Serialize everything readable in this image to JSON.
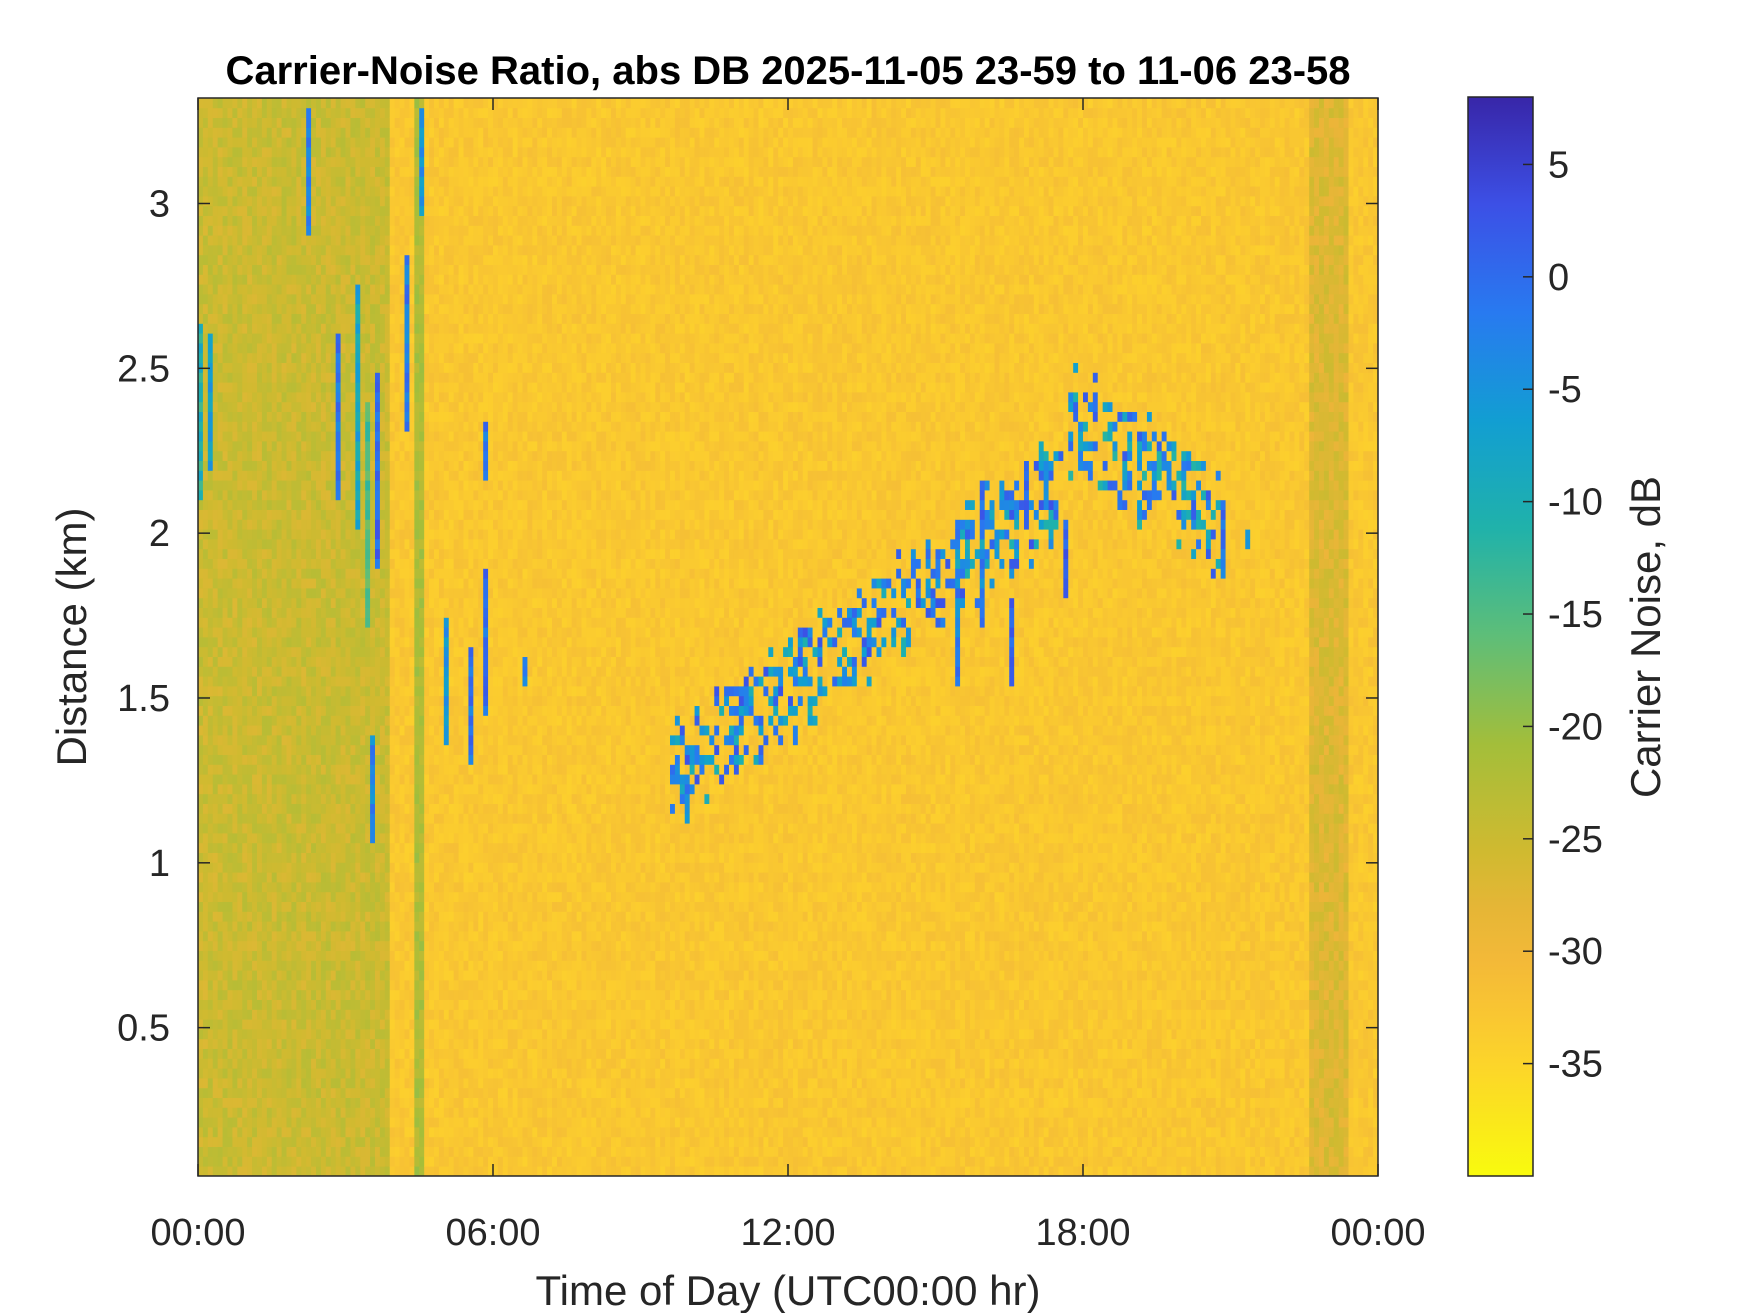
{
  "chart_data": {
    "type": "heatmap",
    "title": "Carrier-Noise Ratio, abs DB 2025-11-05 23-59 to 11-06 23-58",
    "xlabel": "Time of Day (UTC00:00 hr)",
    "ylabel": "Distance (km)",
    "colorbar_label": "Carrier Noise, dB",
    "xlim_hours": [
      0,
      24
    ],
    "ylim_km": [
      0.05,
      3.32
    ],
    "clim_db": [
      -40,
      8
    ],
    "x_ticks": [
      {
        "value": 0,
        "label": "00:00"
      },
      {
        "value": 6,
        "label": "06:00"
      },
      {
        "value": 12,
        "label": "12:00"
      },
      {
        "value": 18,
        "label": "18:00"
      },
      {
        "value": 24,
        "label": "00:00"
      }
    ],
    "y_ticks": [
      {
        "value": 0.5,
        "label": "0.5"
      },
      {
        "value": 1,
        "label": "1"
      },
      {
        "value": 1.5,
        "label": "1.5"
      },
      {
        "value": 2,
        "label": "2"
      },
      {
        "value": 2.5,
        "label": "2.5"
      },
      {
        "value": 3,
        "label": "3"
      }
    ],
    "colorbar_ticks": [
      {
        "value": 5,
        "label": "5"
      },
      {
        "value": 0,
        "label": "0"
      },
      {
        "value": -5,
        "label": "-5"
      },
      {
        "value": -10,
        "label": "-10"
      },
      {
        "value": -15,
        "label": "-15"
      },
      {
        "value": -20,
        "label": "-20"
      },
      {
        "value": -25,
        "label": "-25"
      },
      {
        "value": -30,
        "label": "-30"
      },
      {
        "value": -35,
        "label": "-35"
      }
    ],
    "colormap": "parula_reversed",
    "background_level_db": -33,
    "features": [
      {
        "kind": "column",
        "t_start": 0.0,
        "t_end": 3.9,
        "d_start": 0.05,
        "d_end": 3.32,
        "db": -25
      },
      {
        "kind": "column",
        "t_start": 4.45,
        "t_end": 4.58,
        "d_start": 0.05,
        "d_end": 3.32,
        "db": -22
      },
      {
        "kind": "column",
        "t_start": 22.6,
        "t_end": 23.4,
        "d_start": 0.05,
        "d_end": 3.32,
        "db": -27
      },
      {
        "kind": "streak",
        "t": 0.05,
        "d_start": 2.1,
        "d_end": 2.65,
        "db": -8
      },
      {
        "kind": "streak",
        "t": 0.3,
        "d_start": 2.2,
        "d_end": 2.6,
        "db": -3
      },
      {
        "kind": "streak",
        "t": 2.2,
        "d_start": 2.9,
        "d_end": 3.3,
        "db": 0
      },
      {
        "kind": "streak",
        "t": 2.9,
        "d_start": 2.1,
        "d_end": 2.6,
        "db": 2
      },
      {
        "kind": "streak",
        "t": 3.25,
        "d_start": 2.0,
        "d_end": 2.75,
        "db": -5
      },
      {
        "kind": "streak",
        "t": 3.45,
        "d_start": 1.7,
        "d_end": 2.4,
        "db": -12
      },
      {
        "kind": "streak",
        "t": 3.65,
        "d_start": 1.9,
        "d_end": 2.5,
        "db": 3
      },
      {
        "kind": "streak",
        "t": 4.25,
        "d_start": 2.3,
        "d_end": 2.85,
        "db": 1
      },
      {
        "kind": "streak",
        "t": 3.5,
        "d_start": 1.05,
        "d_end": 1.4,
        "db": 0
      },
      {
        "kind": "streak",
        "t": 4.5,
        "d_start": 2.95,
        "d_end": 3.3,
        "db": -2
      },
      {
        "kind": "streak",
        "t": 5.05,
        "d_start": 1.35,
        "d_end": 1.75,
        "db": -2
      },
      {
        "kind": "streak",
        "t": 5.55,
        "d_start": 1.3,
        "d_end": 1.65,
        "db": 2
      },
      {
        "kind": "streak",
        "t": 5.85,
        "d_start": 1.45,
        "d_end": 1.9,
        "db": 3
      },
      {
        "kind": "streak",
        "t": 5.85,
        "d_start": 2.15,
        "d_end": 2.35,
        "db": 2
      },
      {
        "kind": "streak",
        "t": 6.65,
        "d_start": 1.55,
        "d_end": 1.62,
        "db": 0
      },
      {
        "kind": "streak",
        "t": 15.45,
        "d_start": 1.55,
        "d_end": 2.05,
        "db": 1
      },
      {
        "kind": "streak",
        "t": 15.95,
        "d_start": 1.7,
        "d_end": 2.15,
        "db": 3
      },
      {
        "kind": "streak",
        "t": 16.5,
        "d_start": 1.55,
        "d_end": 1.8,
        "db": 4
      },
      {
        "kind": "streak",
        "t": 16.8,
        "d_start": 2.0,
        "d_end": 2.2,
        "db": 2
      },
      {
        "kind": "streak",
        "t": 17.65,
        "d_start": 1.8,
        "d_end": 2.05,
        "db": 4
      },
      {
        "kind": "streak",
        "t": 20.85,
        "d_start": 1.85,
        "d_end": 2.1,
        "db": 2
      },
      {
        "kind": "streak",
        "t": 21.4,
        "d_start": 1.95,
        "d_end": 2.02,
        "db": 0
      },
      {
        "kind": "band",
        "t_start": 9.6,
        "t_end": 17.6,
        "d_start": 1.27,
        "d_end": 2.15,
        "thickness": 0.28,
        "db": 3
      },
      {
        "kind": "band",
        "t_start": 17.7,
        "t_end": 20.8,
        "d_start": 2.35,
        "d_end": 2.05,
        "thickness": 0.3,
        "db": 2
      }
    ]
  }
}
